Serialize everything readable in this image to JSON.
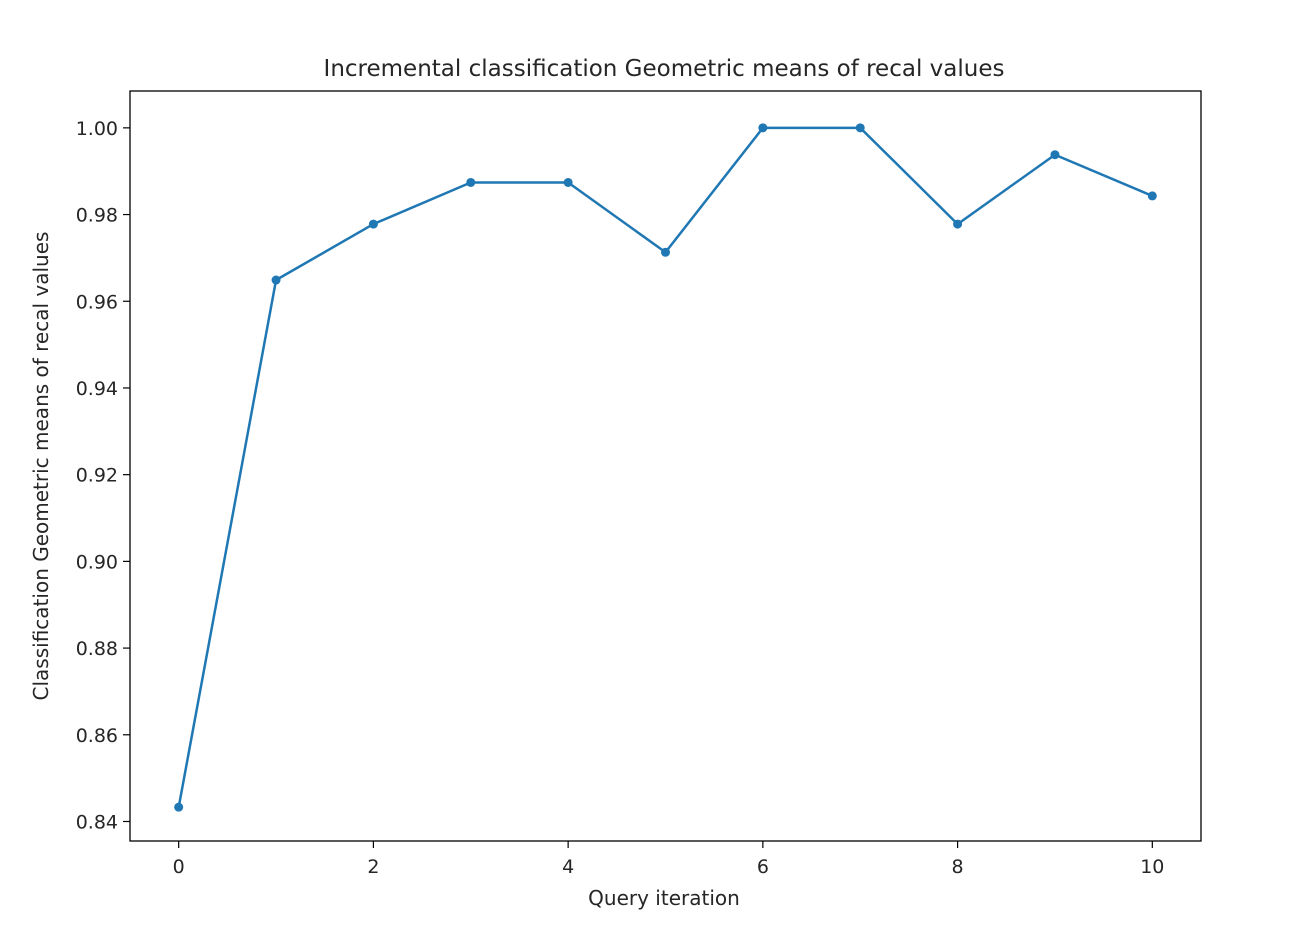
{
  "chart_data": {
    "type": "line",
    "title": "Incremental classification Geometric means of recal values",
    "xlabel": "Query iteration",
    "ylabel": "Classification Geometric means of recal values",
    "x": [
      0,
      1,
      2,
      3,
      4,
      5,
      6,
      7,
      8,
      9,
      10
    ],
    "series": [
      {
        "values": [
          0.8433,
          0.9649,
          0.9778,
          0.9874,
          0.9874,
          0.9713,
          1.0,
          1.0,
          0.9778,
          0.9938,
          0.9843
        ],
        "color": "#1f77b4",
        "marker": "circle"
      }
    ],
    "xlim": [
      -0.5,
      10.5
    ],
    "ylim": [
      0.8355,
      1.0085
    ],
    "xticks": [
      0,
      2,
      4,
      6,
      8,
      10
    ],
    "xtick_labels": [
      "0",
      "2",
      "4",
      "6",
      "8",
      "10"
    ],
    "yticks": [
      0.84,
      0.86,
      0.88,
      0.9,
      0.92,
      0.94,
      0.96,
      0.98,
      1.0
    ],
    "ytick_labels": [
      "0.84",
      "0.86",
      "0.88",
      "0.90",
      "0.92",
      "0.94",
      "0.96",
      "0.98",
      "1.00"
    ],
    "grid": false,
    "legend": "none"
  }
}
